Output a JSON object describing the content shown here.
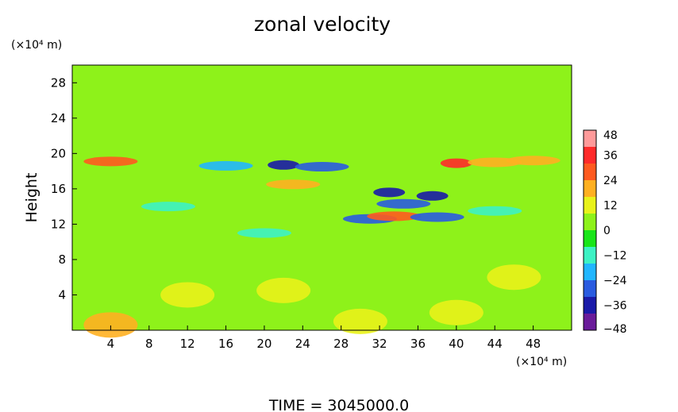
{
  "chart_data": {
    "type": "heatmap",
    "title": "zonal velocity",
    "xlabel": "",
    "ylabel": "Height",
    "x_unit": "(×10⁴ m)",
    "y_unit": "(×10⁴ m)",
    "xlim": [
      0,
      52
    ],
    "ylim": [
      0,
      30
    ],
    "x_ticks": [
      4,
      8,
      12,
      16,
      20,
      24,
      28,
      32,
      36,
      40,
      44,
      48
    ],
    "y_ticks": [
      4,
      8,
      12,
      16,
      20,
      24,
      28
    ],
    "colorbar": {
      "min": -48,
      "max": 48,
      "ticks": [
        48,
        36,
        24,
        12,
        0,
        -12,
        -24,
        -36,
        -48
      ],
      "colors": [
        "#6a1b9a",
        "#1a1aa8",
        "#2a5be0",
        "#21b6ff",
        "#3df2c4",
        "#19e619",
        "#8ef21a",
        "#e9f21a",
        "#ffb021",
        "#ff5a1f",
        "#ff2a2a",
        "#ff9a9a"
      ]
    },
    "background_value": 0,
    "features": [
      {
        "x": 4,
        "y": 19.1,
        "value": 24
      },
      {
        "x": 22,
        "y": 18.7,
        "value": -38
      },
      {
        "x": 26,
        "y": 18.5,
        "value": -30
      },
      {
        "x": 16,
        "y": 18.6,
        "value": -22
      },
      {
        "x": 40,
        "y": 18.9,
        "value": 38
      },
      {
        "x": 44,
        "y": 19.0,
        "value": 20
      },
      {
        "x": 48,
        "y": 19.2,
        "value": 18
      },
      {
        "x": 23,
        "y": 16.5,
        "value": 20
      },
      {
        "x": 33,
        "y": 15.6,
        "value": -38
      },
      {
        "x": 34.5,
        "y": 14.3,
        "value": -30
      },
      {
        "x": 37.5,
        "y": 15.2,
        "value": -34
      },
      {
        "x": 31,
        "y": 12.6,
        "value": -30
      },
      {
        "x": 33.5,
        "y": 12.9,
        "value": 26
      },
      {
        "x": 38,
        "y": 12.8,
        "value": -28
      },
      {
        "x": 10,
        "y": 14.0,
        "value": -14
      },
      {
        "x": 44,
        "y": 13.5,
        "value": -16
      },
      {
        "x": 20,
        "y": 11.0,
        "value": -12
      },
      {
        "x": 4,
        "y": 0.6,
        "value": 20
      },
      {
        "x": 22,
        "y": 4.5,
        "value": 14
      },
      {
        "x": 46,
        "y": 6.0,
        "value": 14
      },
      {
        "x": 40,
        "y": 2.0,
        "value": 12
      },
      {
        "x": 30,
        "y": 1.0,
        "value": 10
      },
      {
        "x": 12,
        "y": 4.0,
        "value": 10
      }
    ]
  },
  "footer": {
    "time_label": "TIME  =  3045000.0"
  }
}
